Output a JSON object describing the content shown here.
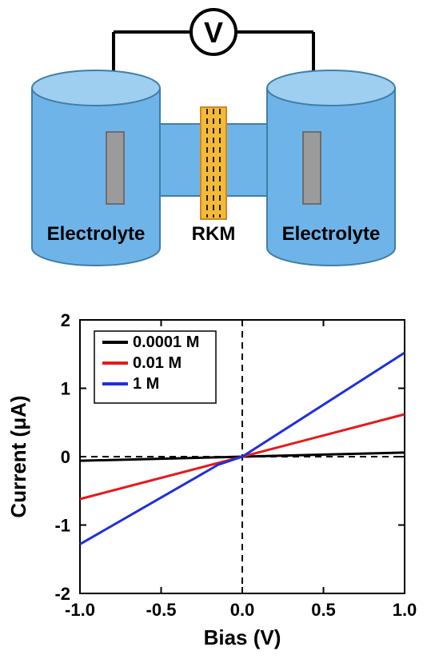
{
  "schematic": {
    "type": "diagram",
    "background_color": "#ffffff",
    "cylinder": {
      "fill": "#6fb4e8",
      "top_fill": "#9ecff0",
      "stroke": "#3f7ea8",
      "stroke_width": 2
    },
    "membrane": {
      "fill": "#f5b93a",
      "stroke": "#cc8a20",
      "dash_color": "#222222"
    },
    "electrode": {
      "fill": "#9b9b9b",
      "stroke": "#6d6d6d"
    },
    "wire": {
      "color": "#000000",
      "width": 4
    },
    "bridge": {
      "fill": "#6fb4e8"
    },
    "voltmeter": {
      "symbol": "V",
      "fill": "#ffffff",
      "stroke": "#000000",
      "font_color": "#000000",
      "font_size": 36
    },
    "labels": {
      "left": "Electrolyte",
      "center": "RKM",
      "right": "Electrolyte",
      "font_color": "#000000",
      "font_size": 24,
      "font_weight": "bold"
    }
  },
  "chart": {
    "type": "line",
    "background_color": "#ffffff",
    "axis_color": "#000000",
    "axis_width": 2,
    "dashed_color": "#000000",
    "xlabel": "Bias (V)",
    "ylabel": "Current (μA)",
    "label_fontsize": 26,
    "tick_fontsize": 22,
    "xlim": [
      -1.0,
      1.0
    ],
    "ylim": [
      -2,
      2
    ],
    "xticks": [
      -1.0,
      -0.5,
      0.0,
      0.5,
      1.0
    ],
    "yticks": [
      -2,
      -1,
      0,
      1,
      2
    ],
    "series": [
      {
        "name": "0.0001 M",
        "color": "#000000",
        "width": 3,
        "points": [
          [
            -1.0,
            -0.06
          ],
          [
            1.0,
            0.06
          ]
        ]
      },
      {
        "name": "0.01 M",
        "color": "#e41a1c",
        "width": 3,
        "points": [
          [
            -1.0,
            -0.62
          ],
          [
            1.0,
            0.62
          ]
        ]
      },
      {
        "name": "1 M",
        "color": "#2030d8",
        "width": 3,
        "points": [
          [
            -1.0,
            -1.28
          ],
          [
            -0.15,
            -0.12
          ],
          [
            0.0,
            0.0
          ],
          [
            1.0,
            1.52
          ]
        ]
      }
    ],
    "legend": {
      "items": [
        "0.0001 M",
        "0.01 M",
        "1 M"
      ],
      "colors": [
        "#000000",
        "#e41a1c",
        "#2030d8"
      ],
      "fontsize": 20,
      "box_stroke": "#000000",
      "box_fill": "#ffffff",
      "position": "upper-left"
    }
  }
}
